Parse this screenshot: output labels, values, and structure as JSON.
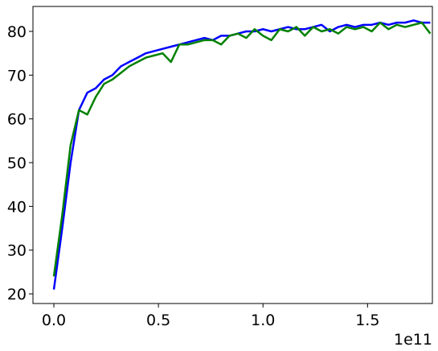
{
  "chart_data": {
    "type": "line",
    "x": [
      0,
      4000000000,
      8000000000,
      12000000000,
      16000000000,
      20000000000,
      24000000000,
      28000000000,
      32000000000,
      36000000000,
      40000000000,
      44000000000,
      48000000000,
      52000000000,
      56000000000,
      60000000000,
      64000000000,
      68000000000,
      72000000000,
      76000000000,
      80000000000,
      84000000000,
      88000000000,
      92000000000,
      96000000000,
      100000000000,
      104000000000,
      108000000000,
      112000000000,
      116000000000,
      120000000000,
      124000000000,
      128000000000,
      132000000000,
      136000000000,
      140000000000,
      144000000000,
      148000000000,
      152000000000,
      156000000000,
      160000000000,
      164000000000,
      168000000000,
      172000000000,
      176000000000,
      180000000000
    ],
    "series": [
      {
        "color": "#0000ff",
        "values": [
          21,
          35,
          50,
          62,
          66,
          67,
          69,
          70,
          72,
          73,
          74,
          75,
          75.5,
          76,
          76.5,
          77,
          77.5,
          78,
          78.5,
          78,
          79,
          79,
          79.5,
          80,
          80,
          80.5,
          80,
          80.5,
          81,
          80.5,
          80.5,
          81,
          81.5,
          80,
          81,
          81.5,
          81,
          81.5,
          81.5,
          82,
          81.5,
          82,
          82,
          82.5,
          82,
          82
        ]
      },
      {
        "color": "#008000",
        "values": [
          24,
          38,
          54,
          62,
          61,
          65,
          68,
          69,
          70.5,
          72,
          73,
          74,
          74.5,
          75,
          73,
          77,
          77,
          77.5,
          78,
          78,
          77,
          79,
          79.5,
          78.5,
          80.5,
          79,
          78,
          80.5,
          80,
          81,
          79,
          81,
          80,
          80.5,
          79.5,
          81,
          80.5,
          81,
          80,
          82,
          80.5,
          81.5,
          81,
          81.5,
          82,
          79.5
        ]
      }
    ],
    "xlim": [
      -10000000000,
      181000000000
    ],
    "xticks": [
      {
        "value": 0,
        "label": "0.0"
      },
      {
        "value": 50000000000,
        "label": "0.5"
      },
      {
        "value": 100000000000,
        "label": "1.0"
      },
      {
        "value": 150000000000,
        "label": "1.5"
      }
    ],
    "x_offset_label": "1e11",
    "ylim": [
      17.8,
      85.7
    ],
    "yticks": [
      20,
      30,
      40,
      50,
      60,
      70,
      80
    ]
  }
}
